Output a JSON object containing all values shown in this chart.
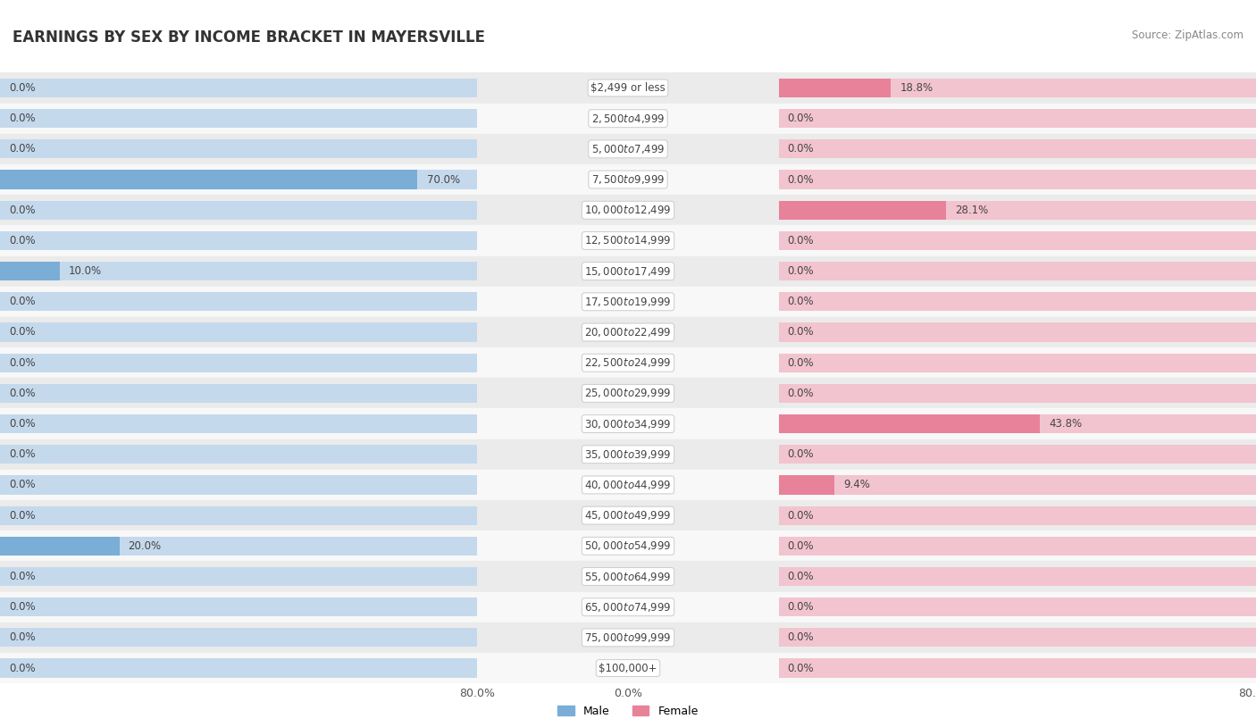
{
  "title": "EARNINGS BY SEX BY INCOME BRACKET IN MAYERSVILLE",
  "source": "Source: ZipAtlas.com",
  "categories": [
    "$2,499 or less",
    "$2,500 to $4,999",
    "$5,000 to $7,499",
    "$7,500 to $9,999",
    "$10,000 to $12,499",
    "$12,500 to $14,999",
    "$15,000 to $17,499",
    "$17,500 to $19,999",
    "$20,000 to $22,499",
    "$22,500 to $24,999",
    "$25,000 to $29,999",
    "$30,000 to $34,999",
    "$35,000 to $39,999",
    "$40,000 to $44,999",
    "$45,000 to $49,999",
    "$50,000 to $54,999",
    "$55,000 to $64,999",
    "$65,000 to $74,999",
    "$75,000 to $99,999",
    "$100,000+"
  ],
  "male_values": [
    0.0,
    0.0,
    0.0,
    70.0,
    0.0,
    0.0,
    10.0,
    0.0,
    0.0,
    0.0,
    0.0,
    0.0,
    0.0,
    0.0,
    0.0,
    20.0,
    0.0,
    0.0,
    0.0,
    0.0
  ],
  "female_values": [
    18.8,
    0.0,
    0.0,
    0.0,
    28.1,
    0.0,
    0.0,
    0.0,
    0.0,
    0.0,
    0.0,
    43.8,
    0.0,
    9.4,
    0.0,
    0.0,
    0.0,
    0.0,
    0.0,
    0.0
  ],
  "male_color": "#7aaed6",
  "female_color": "#e8829a",
  "bar_bg_male": "#c5d9ec",
  "bar_bg_female": "#f2c4cf",
  "row_bg_light": "#ebebeb",
  "row_bg_white": "#f8f8f8",
  "max_value": 80.0,
  "title_fontsize": 12,
  "source_fontsize": 8.5,
  "label_fontsize": 8.5,
  "cat_fontsize": 8.5,
  "tick_fontsize": 9
}
